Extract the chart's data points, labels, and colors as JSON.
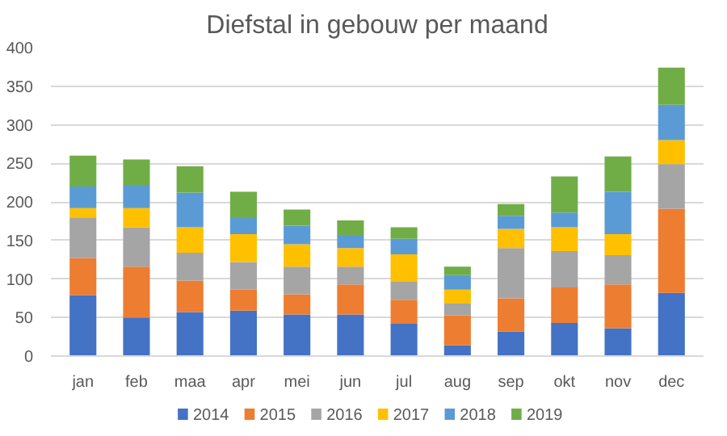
{
  "chart_data": {
    "type": "bar",
    "title": "Diefstal in gebouw per maand",
    "stacked": true,
    "categories": [
      "jan",
      "feb",
      "maa",
      "apr",
      "mei",
      "jun",
      "jul",
      "aug",
      "sep",
      "okt",
      "nov",
      "dec"
    ],
    "series": [
      {
        "name": "2014",
        "color": "#4472c4",
        "values": [
          79,
          50,
          57,
          59,
          54,
          54,
          42,
          14,
          32,
          43,
          36,
          82
        ]
      },
      {
        "name": "2015",
        "color": "#ed7d31",
        "values": [
          48,
          66,
          41,
          27,
          26,
          39,
          31,
          39,
          43,
          46,
          57,
          109
        ]
      },
      {
        "name": "2016",
        "color": "#a5a5a5",
        "values": [
          52,
          51,
          36,
          36,
          36,
          23,
          24,
          15,
          65,
          47,
          38,
          58
        ]
      },
      {
        "name": "2017",
        "color": "#ffc000",
        "values": [
          13,
          25,
          33,
          36,
          29,
          24,
          35,
          18,
          25,
          31,
          27,
          31
        ]
      },
      {
        "name": "2018",
        "color": "#5b9bd5",
        "values": [
          28,
          30,
          45,
          21,
          24,
          16,
          20,
          19,
          17,
          19,
          55,
          46
        ]
      },
      {
        "name": "2019",
        "color": "#70ad47",
        "values": [
          40,
          33,
          34,
          34,
          21,
          20,
          15,
          11,
          15,
          47,
          46,
          48
        ]
      }
    ],
    "ylim": [
      0,
      400
    ],
    "yticks": [
      0,
      50,
      100,
      150,
      200,
      250,
      300,
      350,
      400
    ],
    "grid": "y",
    "legend": "bottom"
  }
}
